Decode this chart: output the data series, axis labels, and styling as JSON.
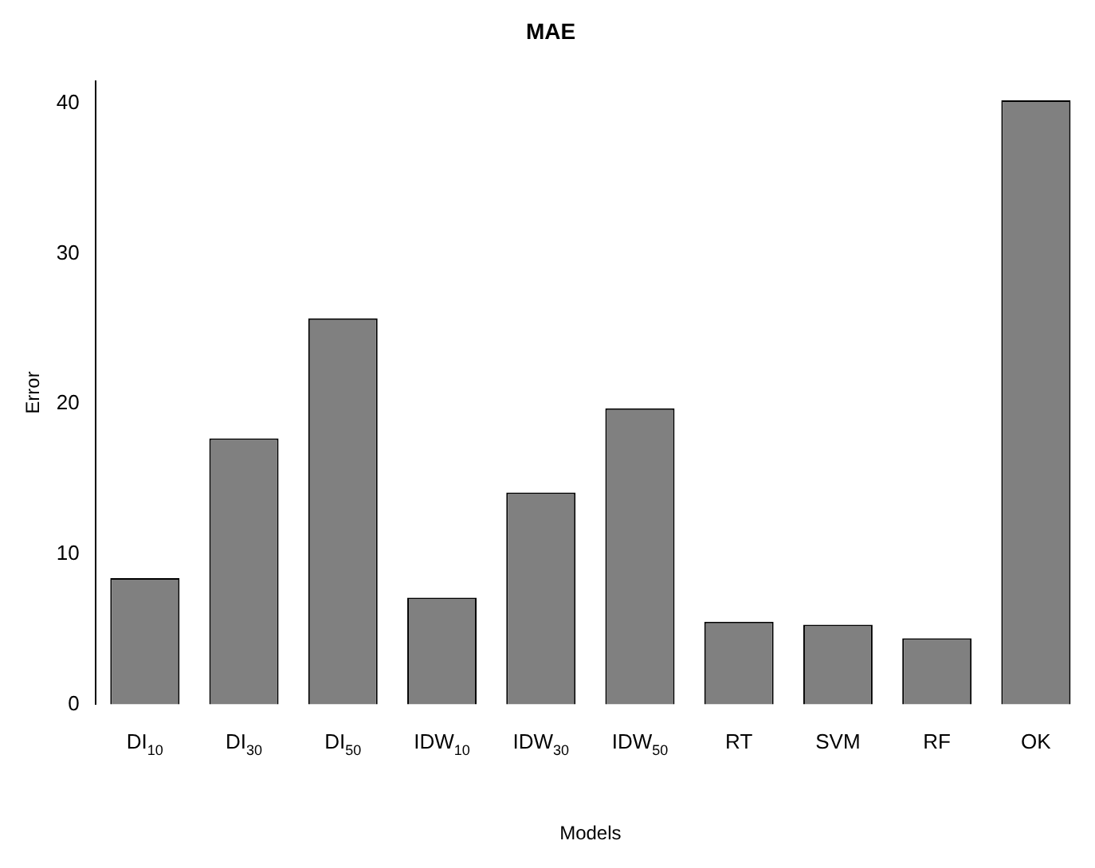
{
  "chart_data": {
    "type": "bar",
    "title": "MAE",
    "xlabel": "Models",
    "ylabel": "Error",
    "categories": [
      "DI$_{10}$",
      "DI$_{30}$",
      "DI$_{50}$",
      "IDW$_{10}$",
      "IDW$_{30}$",
      "IDW$_{50}$",
      "RT",
      "SVM",
      "RF",
      "OK"
    ],
    "values": [
      8.4,
      17.7,
      25.7,
      7.1,
      14.1,
      19.7,
      5.5,
      5.3,
      4.4,
      40.2
    ],
    "color": "#808080",
    "ylim": [
      0,
      41.5
    ],
    "yticks": [
      0,
      10,
      20,
      30,
      40
    ],
    "grid": false,
    "legend": false
  }
}
